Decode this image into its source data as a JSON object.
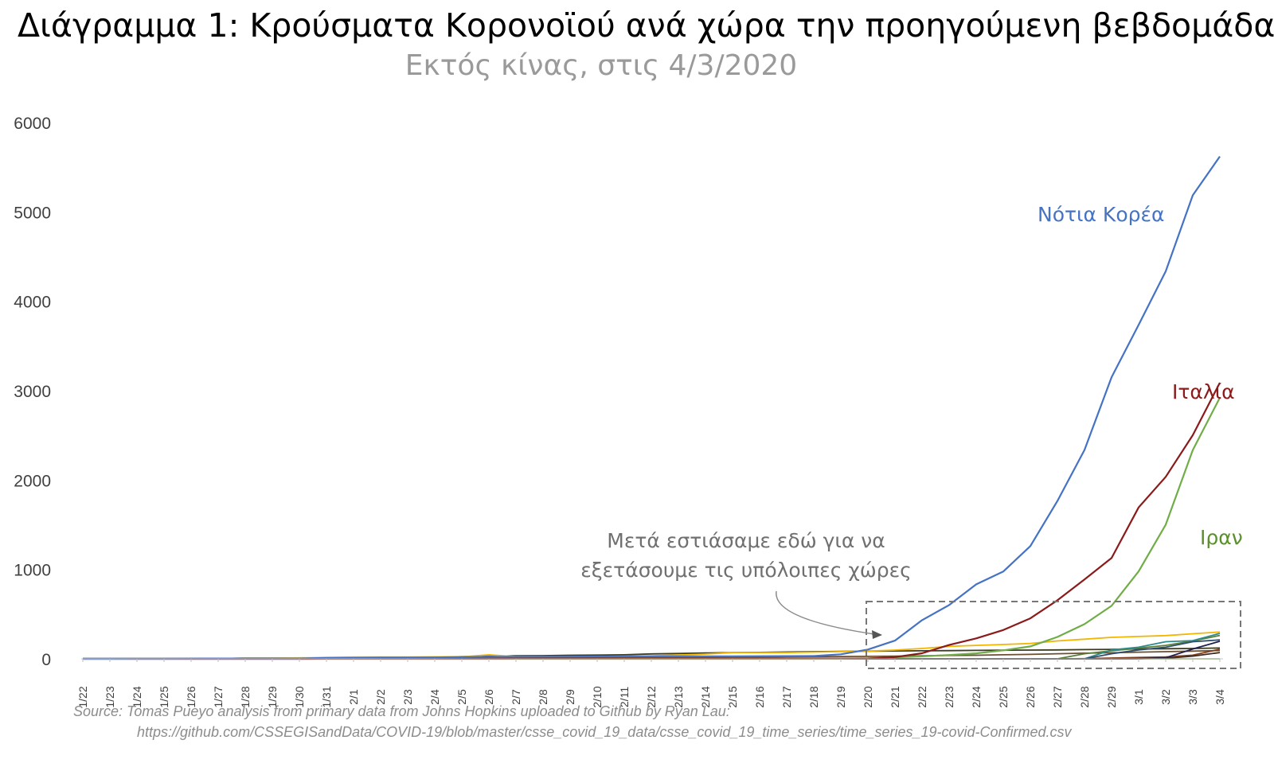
{
  "title": "Διάγραμμα 1: Κρούσματα Κορονοϊού ανά χώρα την προηγούμενη βεβδομάδα",
  "subtitle": "Εκτός κίνας, στις 4/3/2020",
  "source_line1": "Source: Tomas Pueyo analysis from primary data from Johns Hopkins uploaded to Github by Ryan Lau:",
  "source_line2": "https://github.com/CSSEGISandData/COVID-19/blob/master/csse_covid_19_data/csse_covid_19_time_series/time_series_19-covid-Confirmed.csv",
  "annotation": [
    "Μετά εστιάσαμε εδώ για να",
    "εξετάσουμε τις υπόλοιπες χώρες"
  ],
  "chart_data": {
    "type": "line",
    "categories": [
      "1/22",
      "1/23",
      "1/24",
      "1/25",
      "1/26",
      "1/27",
      "1/28",
      "1/29",
      "1/30",
      "1/31",
      "2/1",
      "2/2",
      "2/3",
      "2/4",
      "2/5",
      "2/6",
      "2/7",
      "2/8",
      "2/9",
      "2/10",
      "2/11",
      "2/12",
      "2/13",
      "2/14",
      "2/15",
      "2/16",
      "2/17",
      "2/18",
      "2/19",
      "2/20",
      "2/21",
      "2/22",
      "2/23",
      "2/24",
      "2/25",
      "2/26",
      "2/27",
      "2/28",
      "2/29",
      "3/1",
      "3/2",
      "3/3",
      "3/4"
    ],
    "ylim": [
      0,
      6000
    ],
    "yticks": [
      0,
      1000,
      2000,
      3000,
      4000,
      5000,
      6000
    ],
    "grid": false,
    "series": [
      {
        "name": "Νότια Κορέα",
        "label_color": "#4472c4",
        "color": "#4472c4",
        "values": [
          1,
          1,
          2,
          2,
          3,
          4,
          4,
          4,
          4,
          11,
          12,
          15,
          15,
          16,
          19,
          23,
          24,
          24,
          25,
          27,
          28,
          28,
          28,
          28,
          28,
          29,
          30,
          31,
          51,
          104,
          204,
          433,
          602,
          833,
          977,
          1261,
          1766,
          2337,
          3150,
          3736,
          4335,
          5186,
          5621
        ]
      },
      {
        "name": "Ιταλία",
        "label_color": "#8b1a1a",
        "color": "#8b1a1a",
        "values": [
          0,
          0,
          0,
          0,
          0,
          0,
          0,
          0,
          0,
          2,
          2,
          2,
          2,
          2,
          2,
          2,
          3,
          3,
          3,
          3,
          3,
          3,
          3,
          3,
          3,
          3,
          3,
          3,
          3,
          3,
          20,
          62,
          155,
          229,
          322,
          453,
          655,
          888,
          1128,
          1694,
          2036,
          2502,
          3089
        ]
      },
      {
        "name": "Ιραν",
        "label_color": "#5a8f2c",
        "color": "#70ad47",
        "values": [
          0,
          0,
          0,
          0,
          0,
          0,
          0,
          0,
          0,
          0,
          0,
          0,
          0,
          0,
          0,
          0,
          0,
          0,
          0,
          0,
          0,
          0,
          0,
          0,
          0,
          0,
          0,
          0,
          2,
          5,
          18,
          28,
          43,
          61,
          95,
          139,
          245,
          388,
          593,
          978,
          1501,
          2336,
          2922
        ]
      },
      {
        "name": "",
        "color": "#f2b600",
        "values": [
          2,
          1,
          2,
          2,
          4,
          4,
          7,
          7,
          11,
          15,
          20,
          20,
          20,
          22,
          22,
          45,
          25,
          26,
          26,
          26,
          28,
          33,
          43,
          53,
          69,
          69,
          69,
          75,
          81,
          86,
          98,
          116,
          140,
          150,
          160,
          172,
          200,
          220,
          240,
          250,
          260,
          280,
          300
        ]
      },
      {
        "name": "",
        "color": "#3d2b1f",
        "values": [
          0,
          0,
          0,
          0,
          0,
          0,
          0,
          0,
          0,
          0,
          0,
          0,
          0,
          0,
          0,
          0,
          0,
          0,
          0,
          0,
          0,
          0,
          0,
          0,
          0,
          0,
          0,
          0,
          0,
          0,
          0,
          0,
          0,
          0,
          0,
          0,
          0,
          0,
          0,
          2,
          5,
          30,
          70
        ]
      },
      {
        "name": "",
        "color": "#2f4f6f",
        "values": [
          0,
          0,
          0,
          0,
          0,
          0,
          0,
          0,
          0,
          0,
          0,
          0,
          0,
          0,
          0,
          0,
          0,
          0,
          0,
          0,
          0,
          0,
          0,
          0,
          0,
          0,
          0,
          0,
          0,
          0,
          0,
          0,
          0,
          0,
          0,
          0,
          0,
          0,
          57,
          100,
          130,
          191,
          212
        ]
      },
      {
        "name": "",
        "color": "#2e8b8b",
        "values": [
          0,
          0,
          0,
          0,
          0,
          0,
          0,
          0,
          0,
          0,
          0,
          0,
          0,
          0,
          0,
          0,
          0,
          0,
          0,
          0,
          0,
          0,
          0,
          0,
          0,
          0,
          0,
          0,
          0,
          0,
          0,
          0,
          0,
          0,
          0,
          0,
          0,
          0,
          100,
          130,
          191,
          204,
          285
        ]
      },
      {
        "name": "",
        "color": "#5b7f3a",
        "values": [
          0,
          0,
          0,
          0,
          0,
          0,
          0,
          0,
          0,
          0,
          0,
          0,
          0,
          0,
          0,
          0,
          0,
          0,
          0,
          0,
          0,
          0,
          0,
          0,
          0,
          0,
          0,
          0,
          0,
          0,
          0,
          0,
          0,
          0,
          0,
          0,
          0,
          57,
          90,
          120,
          150,
          200,
          262
        ]
      },
      {
        "name": "",
        "color": "#1f1f4f",
        "values": [
          0,
          0,
          0,
          0,
          0,
          0,
          0,
          0,
          0,
          0,
          0,
          0,
          0,
          0,
          0,
          0,
          0,
          0,
          0,
          0,
          0,
          0,
          0,
          0,
          0,
          0,
          0,
          0,
          0,
          0,
          0,
          0,
          0,
          0,
          0,
          0,
          0,
          0,
          0,
          2,
          12,
          110,
          197
        ]
      },
      {
        "name": "",
        "color": "#7f3f1f",
        "values": [
          0,
          0,
          0,
          0,
          0,
          0,
          0,
          0,
          0,
          0,
          0,
          0,
          0,
          0,
          0,
          0,
          0,
          0,
          0,
          0,
          0,
          0,
          0,
          0,
          0,
          0,
          0,
          0,
          0,
          0,
          0,
          0,
          0,
          0,
          0,
          0,
          0,
          2,
          9,
          15,
          21,
          41,
          108
        ]
      },
      {
        "name": "",
        "color": "#3b3b1f",
        "values": [
          2,
          2,
          2,
          2,
          4,
          4,
          7,
          7,
          7,
          10,
          12,
          14,
          17,
          18,
          24,
          30,
          34,
          36,
          40,
          42,
          45,
          55,
          60,
          65,
          70,
          72,
          77,
          80,
          83,
          86,
          88,
          90,
          92,
          94,
          96,
          98,
          100,
          103,
          106,
          110,
          113,
          116,
          121
        ]
      },
      {
        "name": "",
        "color": "#6b4f2f",
        "values": [
          0,
          1,
          1,
          1,
          1,
          2,
          2,
          2,
          2,
          3,
          3,
          3,
          4,
          4,
          6,
          8,
          9,
          11,
          11,
          12,
          14,
          15,
          16,
          17,
          19,
          20,
          22,
          24,
          26,
          28,
          30,
          34,
          38,
          40,
          45,
          50,
          57,
          63,
          68,
          75,
          80,
          86,
          93
        ]
      },
      {
        "name": "",
        "color": "#8bb16b",
        "values": [
          0,
          0,
          0,
          0,
          0,
          0,
          0,
          0,
          0,
          0,
          0,
          0,
          0,
          0,
          0,
          0,
          0,
          0,
          0,
          0,
          0,
          0,
          0,
          0,
          0,
          0,
          0,
          0,
          0,
          0,
          0,
          0,
          0,
          0,
          0,
          0,
          0,
          0,
          0,
          0,
          0,
          0,
          0
        ]
      }
    ]
  }
}
